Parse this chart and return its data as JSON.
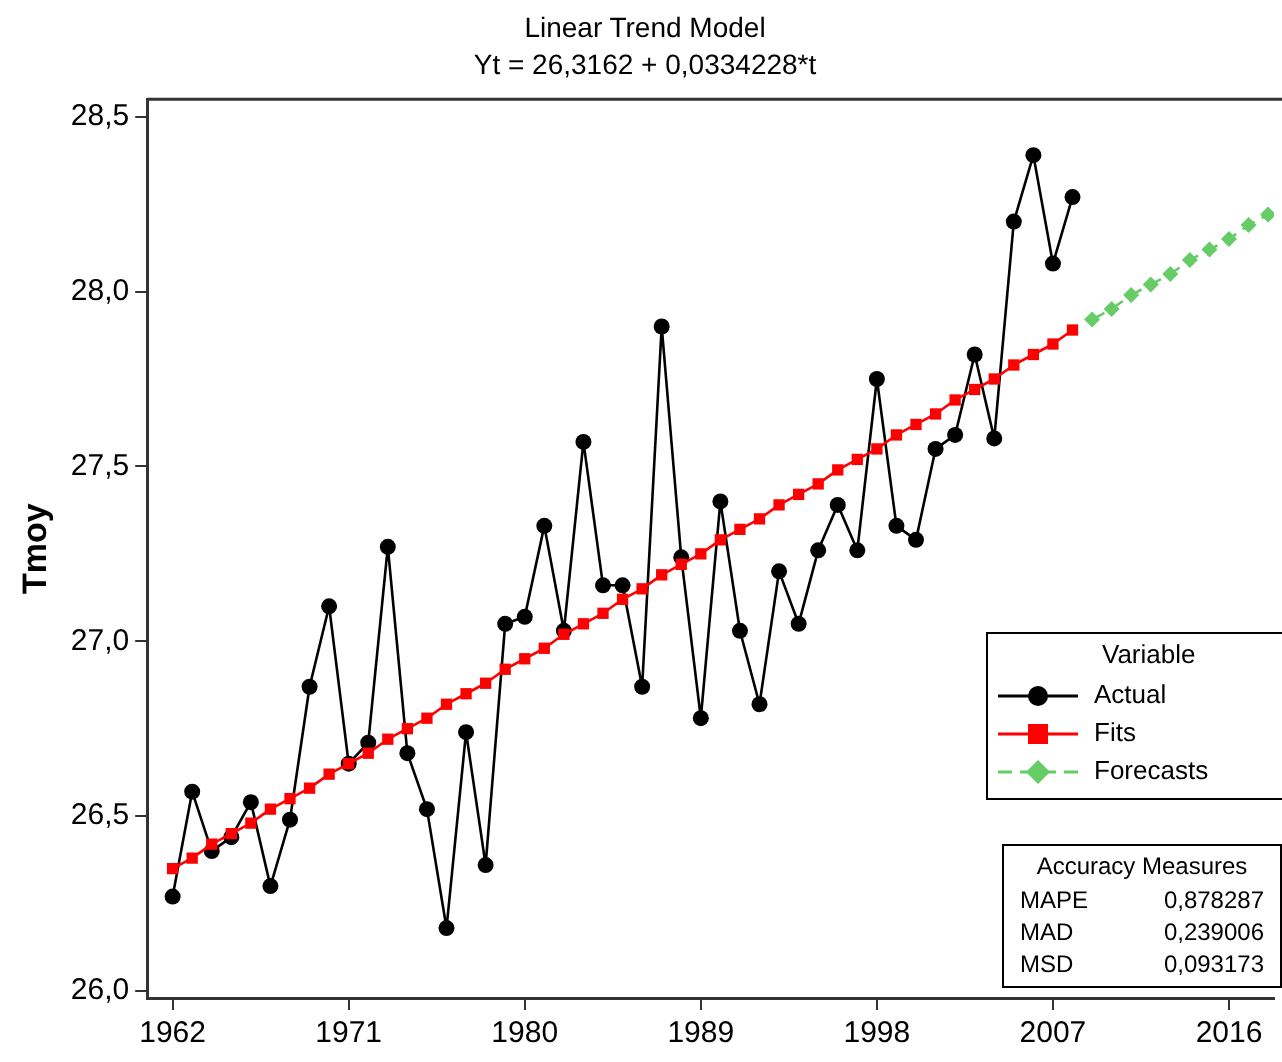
{
  "chart_data": {
    "type": "line",
    "title": "Linear Trend Model",
    "subtitle": "Yt = 26,3162 + 0,0334228*t",
    "ylabel": "Tmoy",
    "legend_title": "Variable",
    "legend": "bottom right",
    "grid": false,
    "xlim": [
      1960.7,
      2018.3
    ],
    "xticks": [
      1962,
      1971,
      1980,
      1989,
      1998,
      2007,
      2016
    ],
    "ylim": [
      25.98,
      28.55
    ],
    "yticks": [
      {
        "value": 26.0,
        "label": "26,0"
      },
      {
        "value": 26.5,
        "label": "26,5"
      },
      {
        "value": 27.0,
        "label": "27,0"
      },
      {
        "value": 27.5,
        "label": "27,5"
      },
      {
        "value": 28.0,
        "label": "28,0"
      },
      {
        "value": 28.5,
        "label": "28,5"
      }
    ],
    "series": [
      {
        "name": "Actual",
        "color": "#000000",
        "marker": "circle",
        "line_style": "solid",
        "x": [
          1962,
          1963,
          1964,
          1965,
          1966,
          1967,
          1968,
          1969,
          1970,
          1971,
          1972,
          1973,
          1974,
          1975,
          1976,
          1977,
          1978,
          1979,
          1980,
          1981,
          1982,
          1983,
          1984,
          1985,
          1986,
          1987,
          1988,
          1989,
          1990,
          1991,
          1992,
          1993,
          1994,
          1995,
          1996,
          1997,
          1998,
          1999,
          2000,
          2001,
          2002,
          2003,
          2004,
          2005,
          2006,
          2007,
          2008
        ],
        "values": [
          26.27,
          26.57,
          26.4,
          26.44,
          26.54,
          26.3,
          26.49,
          26.87,
          27.1,
          26.65,
          26.71,
          27.27,
          26.68,
          26.52,
          26.18,
          26.74,
          26.36,
          27.05,
          27.07,
          27.33,
          27.03,
          27.57,
          27.16,
          27.16,
          26.87,
          27.9,
          27.24,
          26.78,
          27.4,
          27.03,
          26.82,
          27.2,
          27.05,
          27.26,
          27.39,
          27.26,
          27.75,
          27.33,
          27.29,
          27.55,
          27.59,
          27.82,
          27.58,
          28.2,
          28.39,
          28.08,
          28.27
        ]
      },
      {
        "name": "Fits",
        "color": "#ff0000",
        "marker": "square",
        "line_style": "solid",
        "x": [
          1962,
          1963,
          1964,
          1965,
          1966,
          1967,
          1968,
          1969,
          1970,
          1971,
          1972,
          1973,
          1974,
          1975,
          1976,
          1977,
          1978,
          1979,
          1980,
          1981,
          1982,
          1983,
          1984,
          1985,
          1986,
          1987,
          1988,
          1989,
          1990,
          1991,
          1992,
          1993,
          1994,
          1995,
          1996,
          1997,
          1998,
          1999,
          2000,
          2001,
          2002,
          2003,
          2004,
          2005,
          2006,
          2007,
          2008
        ],
        "values": [
          26.35,
          26.38,
          26.42,
          26.45,
          26.48,
          26.52,
          26.55,
          26.58,
          26.62,
          26.65,
          26.68,
          26.72,
          26.75,
          26.78,
          26.82,
          26.85,
          26.88,
          26.92,
          26.95,
          26.98,
          27.02,
          27.05,
          27.08,
          27.12,
          27.15,
          27.19,
          27.22,
          27.25,
          27.29,
          27.32,
          27.35,
          27.39,
          27.42,
          27.45,
          27.49,
          27.52,
          27.55,
          27.59,
          27.62,
          27.65,
          27.69,
          27.72,
          27.75,
          27.79,
          27.82,
          27.85,
          27.89
        ]
      },
      {
        "name": "Forecasts",
        "color": "#66cc66",
        "marker": "diamond",
        "line_style": "dashed",
        "x": [
          2009,
          2010,
          2011,
          2012,
          2013,
          2014,
          2015,
          2016,
          2017,
          2018
        ],
        "values": [
          27.92,
          27.95,
          27.99,
          28.02,
          28.05,
          28.09,
          28.12,
          28.15,
          28.19,
          28.22
        ]
      }
    ],
    "annotations": [
      "Accuracy Measures",
      "MAPE",
      "0,878287",
      "MAD",
      "0,239006",
      "MSD",
      "0,093173"
    ]
  }
}
